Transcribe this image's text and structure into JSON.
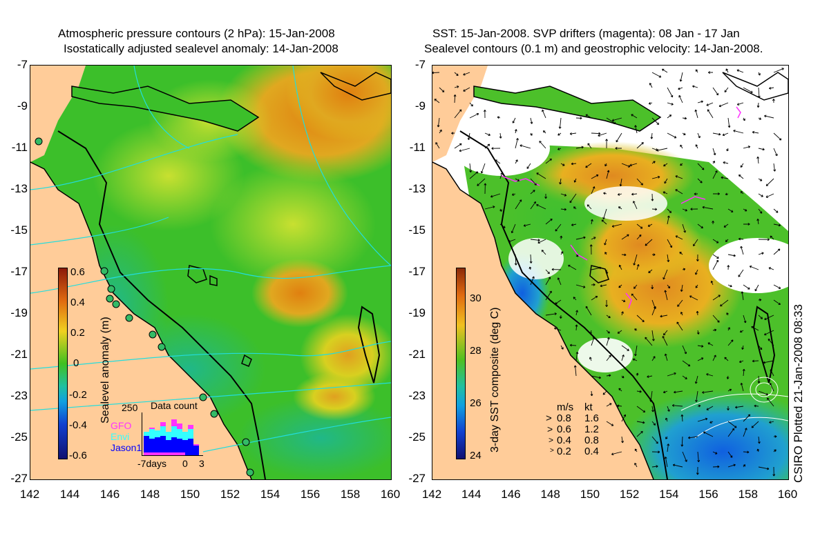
{
  "left_panel": {
    "title_line1": "Atmospheric pressure contours (2 hPa): 15-Jan-2008",
    "title_line2": "Isostatically adjusted sealevel anomaly: 14-Jan-2008",
    "colorbar_label": "Sealevel anomaly (m)",
    "colorbar_ticks": [
      "0.6",
      "0.4",
      "0.2",
      "0",
      "-0.2",
      "-0.4",
      "-0.6"
    ],
    "inset": {
      "title": "Data count",
      "ymax_label": "250",
      "x_labels": [
        "-7days",
        "0",
        "3"
      ],
      "series": [
        {
          "name": "GFO",
          "color": "#ff33ff"
        },
        {
          "name": "Envi",
          "color": "#33ffff"
        },
        {
          "name": "Jason1",
          "color": "#0000ff"
        }
      ]
    }
  },
  "right_panel": {
    "title_line1": "SST: 15-Jan-2008. SVP drifters (magenta): 08 Jan - 17 Jan",
    "title_line2": "Sealevel contours (0.1 m) and geostrophic velocity: 14-Jan-2008.",
    "colorbar_label": "3-day SST composite (deg C)",
    "colorbar_ticks": [
      "30",
      "28",
      "26",
      "24"
    ],
    "velocity_legend": {
      "header_ms": "m/s",
      "header_kt": "kt",
      "rows": [
        {
          "ms": "0.8",
          "kt": "1.6"
        },
        {
          "ms": "0.6",
          "kt": "1.2"
        },
        {
          "ms": "0.4",
          "kt": "0.8"
        },
        {
          "ms": "0.2",
          "kt": "0.4"
        }
      ]
    }
  },
  "axes": {
    "y_ticks": [
      "-7",
      "-9",
      "-11",
      "-13",
      "-15",
      "-17",
      "-19",
      "-21",
      "-23",
      "-25",
      "-27"
    ],
    "x_ticks": [
      "142",
      "144",
      "146",
      "148",
      "150",
      "152",
      "154",
      "156",
      "158",
      "160"
    ]
  },
  "credit": "CSIRO Plotted 21-Jan-2008 08:33",
  "colors": {
    "land": "#ffcc99",
    "sla_green": "#33bb22",
    "contour_cyan": "#22dddd",
    "drifter_magenta": "#ff33ff"
  }
}
